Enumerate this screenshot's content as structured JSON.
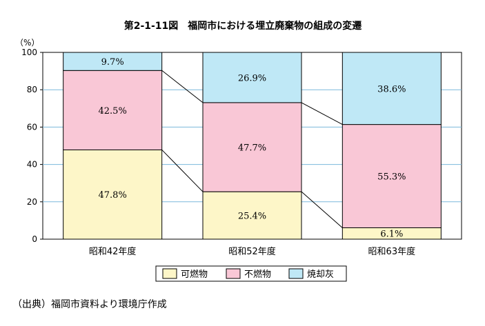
{
  "chart_data": {
    "type": "bar",
    "stacked": true,
    "title": "第2-1-11図　福岡市における埋立廃棄物の組成の変遷",
    "ylabel": "（%）",
    "xlabel": "",
    "ylim": [
      0,
      100
    ],
    "yticks": [
      "0",
      "20",
      "40",
      "60",
      "80",
      "100"
    ],
    "grid": true,
    "legend_position": "bottom",
    "categories": [
      "昭和42年度",
      "昭和52年度",
      "昭和63年度"
    ],
    "series": [
      {
        "name": "可燃物",
        "color": "#fdf6c8",
        "values": [
          47.8,
          25.4,
          6.1
        ],
        "labels": [
          "47.8%",
          "25.4%",
          "6.1%"
        ]
      },
      {
        "name": "不燃物",
        "color": "#f9c7d6",
        "values": [
          42.5,
          47.7,
          55.3
        ],
        "labels": [
          "42.5%",
          "47.7%",
          "55.3%"
        ]
      },
      {
        "name": "焼却灰",
        "color": "#bfe8f6",
        "values": [
          9.7,
          26.9,
          38.6
        ],
        "labels": [
          "9.7%",
          "26.9%",
          "38.6%"
        ]
      }
    ],
    "gridline_color": "#7ab8dc",
    "source": "（出典）福岡市資料より環境庁作成"
  }
}
